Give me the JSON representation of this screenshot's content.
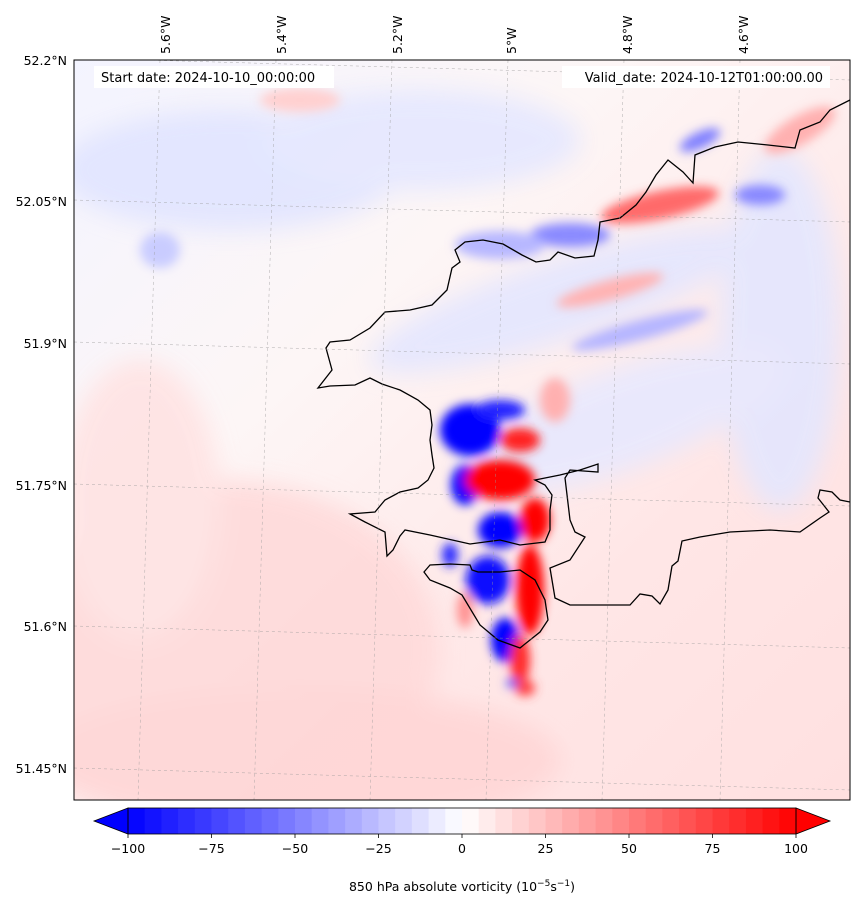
{
  "map": {
    "start_label": "Start date: 2024-10-10_00:00:00",
    "valid_label": "Valid_date: 2024-10-12T01:00:00.00",
    "lon_labels": [
      "5.6°W",
      "5.4°W",
      "5.2°W",
      "5°W",
      "4.8°W",
      "4.6°W"
    ],
    "lat_labels": [
      "52.2°N",
      "52.05°N",
      "51.9°N",
      "51.75°N",
      "51.6°N",
      "51.45°N"
    ]
  },
  "colorbar": {
    "tick_labels": [
      "−100",
      "−75",
      "−50",
      "−25",
      "0",
      "25",
      "50",
      "75",
      "100"
    ],
    "min": -100,
    "max": 100,
    "extend": "both",
    "label": "850 hPa absolute vorticity (10",
    "label_unit_1": "−5",
    "label_unit_2": "s",
    "label_unit_3": "−1",
    "label_end": ")",
    "colors": {
      "negative": "#0000ff",
      "zero": "#ffffff",
      "positive": "#ff0000"
    }
  }
}
